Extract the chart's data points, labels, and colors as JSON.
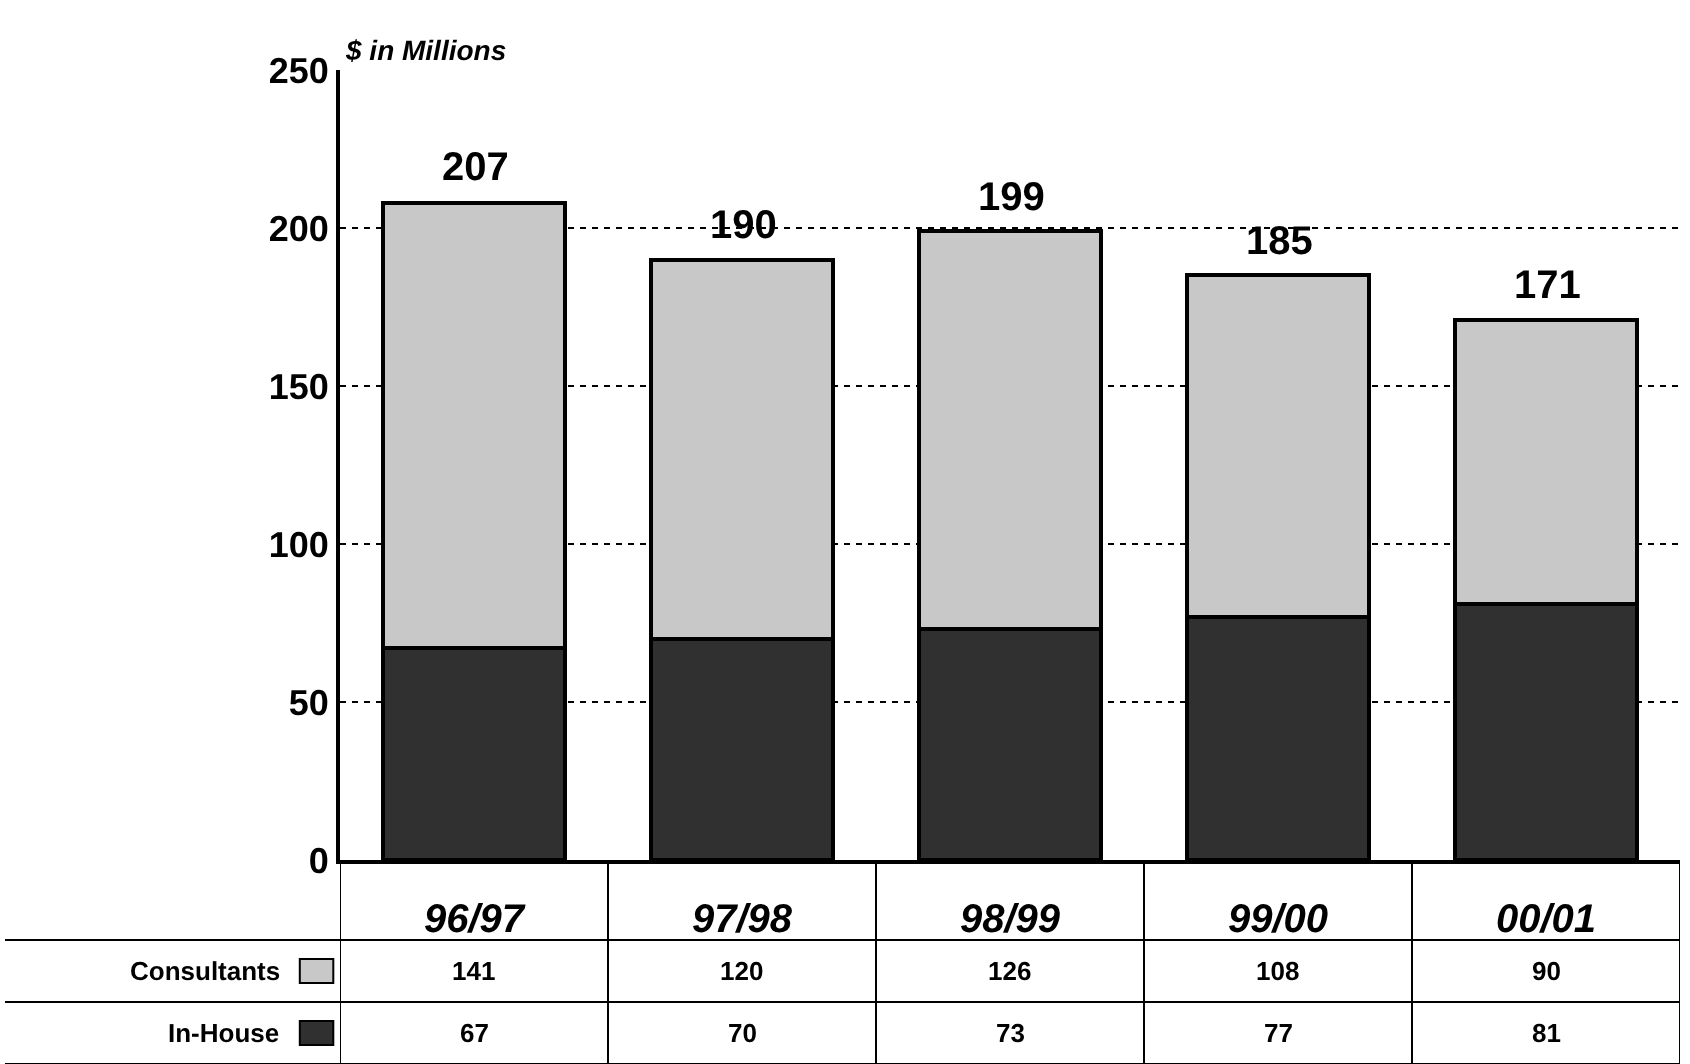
{
  "chart_data": {
    "type": "bar",
    "stacked": true,
    "ylabel": "$ in Millions",
    "categories": [
      "96/97",
      "97/98",
      "98/99",
      "99/00",
      "00/01"
    ],
    "series": [
      {
        "name": "In-House",
        "color": "#303030",
        "values": [
          67,
          70,
          73,
          77,
          81
        ]
      },
      {
        "name": "Consultants",
        "color": "#c8c8c8",
        "values": [
          141,
          120,
          126,
          108,
          90
        ]
      }
    ],
    "totals": [
      "207",
      "190",
      "199",
      "185",
      "171"
    ],
    "data_labels": true,
    "legend": "bottom left",
    "ylim": [
      0,
      250
    ],
    "yticks": [
      0,
      50,
      100,
      150,
      200,
      250
    ],
    "grid": "y"
  }
}
